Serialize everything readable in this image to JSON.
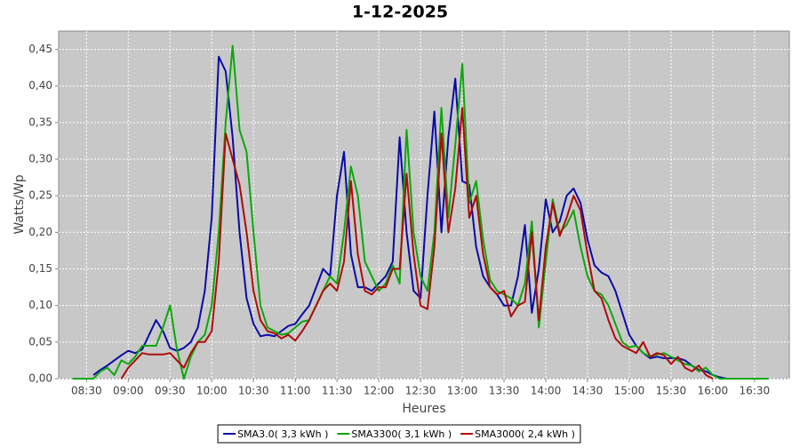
{
  "chart_data": {
    "type": "line",
    "title": "1-12-2025",
    "x_label": "Heures",
    "y_label": "Watts/Wp",
    "x": [
      "08:20",
      "08:25",
      "08:30",
      "08:35",
      "08:40",
      "08:45",
      "08:50",
      "08:55",
      "09:00",
      "09:05",
      "09:10",
      "09:15",
      "09:20",
      "09:25",
      "09:30",
      "09:35",
      "09:40",
      "09:45",
      "09:50",
      "09:55",
      "10:00",
      "10:05",
      "10:10",
      "10:15",
      "10:20",
      "10:25",
      "10:30",
      "10:35",
      "10:40",
      "10:45",
      "10:50",
      "10:55",
      "11:00",
      "11:05",
      "11:10",
      "11:15",
      "11:20",
      "11:25",
      "11:30",
      "11:35",
      "11:40",
      "11:45",
      "11:50",
      "11:55",
      "12:00",
      "12:05",
      "12:10",
      "12:15",
      "12:20",
      "12:25",
      "12:30",
      "12:35",
      "12:40",
      "12:45",
      "12:50",
      "12:55",
      "13:00",
      "13:05",
      "13:10",
      "13:15",
      "13:20",
      "13:25",
      "13:30",
      "13:35",
      "13:40",
      "13:45",
      "13:50",
      "13:55",
      "14:00",
      "14:05",
      "14:10",
      "14:15",
      "14:20",
      "14:25",
      "14:30",
      "14:35",
      "14:40",
      "14:45",
      "14:50",
      "14:55",
      "15:00",
      "15:05",
      "15:10",
      "15:15",
      "15:20",
      "15:25",
      "15:30",
      "15:35",
      "15:40",
      "15:45",
      "15:50",
      "15:55",
      "16:00",
      "16:05",
      "16:10",
      "16:15",
      "16:20",
      "16:25",
      "16:30",
      "16:35",
      "16:40",
      "16:45"
    ],
    "series": [
      {
        "name": "SMA3.0( 3,3 kWh )",
        "color": "#0a0aa8",
        "values": [
          null,
          null,
          null,
          0.005,
          0.012,
          0.018,
          0.025,
          0.032,
          0.038,
          0.035,
          0.04,
          0.06,
          0.08,
          0.065,
          0.042,
          0.038,
          0.042,
          0.05,
          0.07,
          0.12,
          0.22,
          0.44,
          0.42,
          0.33,
          0.2,
          0.11,
          0.075,
          0.058,
          0.06,
          0.058,
          0.065,
          0.072,
          0.075,
          0.088,
          0.1,
          0.125,
          0.15,
          0.14,
          0.25,
          0.31,
          0.17,
          0.125,
          0.125,
          0.12,
          0.13,
          0.14,
          0.16,
          0.33,
          0.2,
          0.12,
          0.11,
          0.25,
          0.365,
          0.2,
          0.33,
          0.41,
          0.27,
          0.265,
          0.18,
          0.14,
          0.125,
          0.115,
          0.1,
          0.1,
          0.14,
          0.21,
          0.09,
          0.15,
          0.245,
          0.2,
          0.215,
          0.25,
          0.26,
          0.24,
          0.19,
          0.155,
          0.145,
          0.14,
          0.12,
          0.09,
          0.06,
          0.045,
          0.035,
          0.028,
          0.03,
          0.028,
          0.028,
          0.028,
          0.025,
          0.018,
          0.012,
          0.01,
          0.005,
          0.002,
          0.0,
          null,
          null,
          null,
          null,
          null,
          null,
          null
        ]
      },
      {
        "name": "SMA3300( 3,1 kWh )",
        "color": "#0aa80a",
        "values": [
          0.0,
          0.0,
          0.0,
          0.0,
          0.01,
          0.015,
          0.005,
          0.025,
          0.02,
          0.03,
          0.045,
          0.045,
          0.045,
          0.07,
          0.1,
          0.04,
          0.0,
          0.03,
          0.05,
          0.06,
          0.1,
          0.2,
          0.35,
          0.455,
          0.34,
          0.31,
          0.2,
          0.1,
          0.07,
          0.065,
          0.06,
          0.062,
          0.07,
          0.078,
          0.08,
          0.1,
          0.12,
          0.14,
          0.13,
          0.2,
          0.29,
          0.25,
          0.16,
          0.14,
          0.12,
          0.13,
          0.155,
          0.13,
          0.34,
          0.2,
          0.14,
          0.12,
          0.2,
          0.37,
          0.22,
          0.32,
          0.43,
          0.24,
          0.27,
          0.19,
          0.135,
          0.12,
          0.115,
          0.11,
          0.1,
          0.13,
          0.215,
          0.07,
          0.16,
          0.245,
          0.2,
          0.21,
          0.23,
          0.18,
          0.14,
          0.12,
          0.115,
          0.1,
          0.075,
          0.05,
          0.043,
          0.045,
          0.035,
          0.03,
          0.033,
          0.035,
          0.03,
          0.025,
          0.02,
          0.018,
          0.01,
          0.015,
          0.005,
          0.0,
          0.0,
          0.0,
          0.0,
          0.0,
          0.0,
          0.0,
          0.0,
          null
        ]
      },
      {
        "name": "SMA3000( 2,4 kWh )",
        "color": "#b00a0a",
        "values": [
          null,
          null,
          null,
          null,
          null,
          null,
          null,
          0.0,
          0.015,
          0.025,
          0.035,
          0.033,
          0.033,
          0.033,
          0.035,
          0.025,
          0.015,
          0.035,
          0.05,
          0.05,
          0.065,
          0.16,
          0.335,
          0.3,
          0.265,
          0.2,
          0.12,
          0.08,
          0.065,
          0.062,
          0.055,
          0.06,
          0.052,
          0.065,
          0.08,
          0.1,
          0.12,
          0.13,
          0.12,
          0.16,
          0.27,
          0.17,
          0.12,
          0.115,
          0.125,
          0.125,
          0.15,
          0.15,
          0.28,
          0.17,
          0.1,
          0.095,
          0.18,
          0.335,
          0.2,
          0.26,
          0.37,
          0.22,
          0.25,
          0.17,
          0.125,
          0.115,
          0.12,
          0.085,
          0.1,
          0.105,
          0.2,
          0.08,
          0.18,
          0.24,
          0.195,
          0.22,
          0.25,
          0.23,
          0.17,
          0.12,
          0.11,
          0.08,
          0.055,
          0.045,
          0.04,
          0.035,
          0.05,
          0.03,
          0.035,
          0.032,
          0.02,
          0.03,
          0.015,
          0.01,
          0.018,
          0.005,
          0.0,
          null,
          null,
          null,
          null,
          null,
          null,
          null,
          null,
          null
        ]
      }
    ],
    "xlim": [
      "08:10",
      "16:55"
    ],
    "xticks": [
      "08:30",
      "09:00",
      "09:30",
      "10:00",
      "10:30",
      "11:00",
      "11:30",
      "12:00",
      "12:30",
      "13:00",
      "13:30",
      "14:00",
      "14:30",
      "15:00",
      "15:30",
      "16:00",
      "16:30"
    ],
    "ylim": [
      0,
      0.475
    ],
    "yticks": [
      {
        "value": 0,
        "label": "0,00"
      },
      {
        "value": 0.05,
        "label": "0,05"
      },
      {
        "value": 0.1,
        "label": "0,10"
      },
      {
        "value": 0.15,
        "label": "0,15"
      },
      {
        "value": 0.2,
        "label": "0,20"
      },
      {
        "value": 0.25,
        "label": "0,25"
      },
      {
        "value": 0.3,
        "label": "0,30"
      },
      {
        "value": 0.35,
        "label": "0,35"
      },
      {
        "value": 0.4,
        "label": "0,40"
      },
      {
        "value": 0.45,
        "label": "0,45"
      }
    ],
    "grid": true,
    "legend": "bottom"
  }
}
